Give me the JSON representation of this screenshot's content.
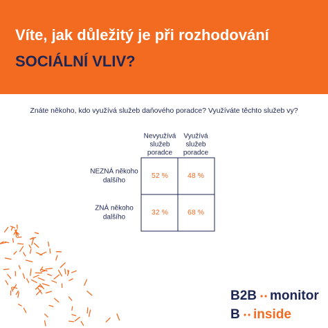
{
  "header": {
    "title_line1": "Víte, jak důležitý je při rozhodování",
    "title_line2": "SOCIÁLNÍ VLIV?"
  },
  "question": "Znáte někoho, kdo využívá služeb daňového poradce? Využíváte těchto služeb vy?",
  "table": {
    "columns": [
      [
        "Nevyužívá",
        "služeb",
        "poradce"
      ],
      [
        "Využívá",
        "služeb",
        "poradce"
      ]
    ],
    "rows": [
      {
        "label": [
          "NEZNÁ někoho",
          "dalšího"
        ],
        "cells": [
          "52 %",
          "48 %"
        ]
      },
      {
        "label": [
          "ZNÁ někoho",
          "dalšího"
        ],
        "cells": [
          "32 %",
          "68 %"
        ]
      }
    ]
  },
  "logo": {
    "line1": [
      "B2B",
      "monitor"
    ],
    "line2": [
      "B",
      "inside"
    ]
  }
}
